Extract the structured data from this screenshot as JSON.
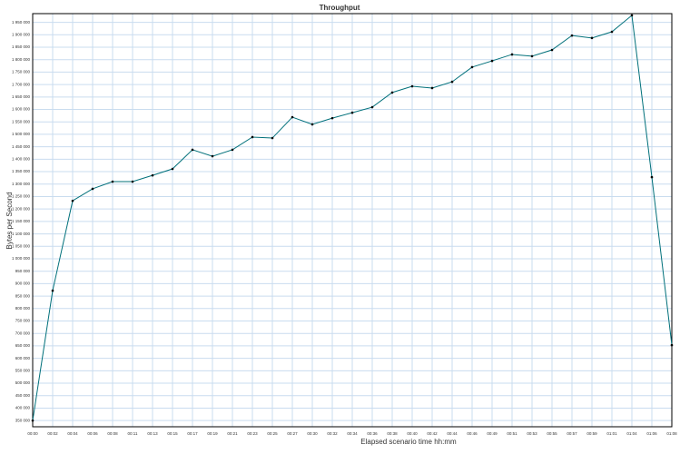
{
  "chart_data": {
    "type": "line",
    "title": "Throughput",
    "x_label": "Elapsed scenario time hh:mm",
    "y_label": "Bytes per Second",
    "categories": [
      "00:00",
      "00:02",
      "00:04",
      "00:06",
      "00:08",
      "00:11",
      "00:13",
      "00:15",
      "00:17",
      "00:19",
      "00:21",
      "00:23",
      "00:25",
      "00:27",
      "00:30",
      "00:32",
      "00:34",
      "00:36",
      "00:38",
      "00:40",
      "00:42",
      "00:44",
      "00:46",
      "00:49",
      "00:51",
      "00:53",
      "00:55",
      "00:57",
      "00:59",
      "01:01",
      "01:04",
      "01:06",
      "01:08"
    ],
    "series": [
      {
        "name": "Throughput",
        "color": "#00707a",
        "values": [
          350000,
          872000,
          1233000,
          1281000,
          1310000,
          1310000,
          1335000,
          1361000,
          1438000,
          1412000,
          1438000,
          1489000,
          1485000,
          1569000,
          1540000,
          1565000,
          1587000,
          1609000,
          1668000,
          1693000,
          1686000,
          1711000,
          1770000,
          1795000,
          1821000,
          1814000,
          1839000,
          1897000,
          1887000,
          1912000,
          1978000,
          1328000,
          653000
        ]
      }
    ],
    "ylim": [
      325000,
      1985000
    ],
    "yticks": [
      {
        "value": 350000,
        "label": "350 000"
      },
      {
        "value": 400000,
        "label": "400 000"
      },
      {
        "value": 450000,
        "label": "450 000"
      },
      {
        "value": 500000,
        "label": "500 000"
      },
      {
        "value": 550000,
        "label": "550 000"
      },
      {
        "value": 600000,
        "label": "600 000"
      },
      {
        "value": 650000,
        "label": "650 000"
      },
      {
        "value": 700000,
        "label": "700 000"
      },
      {
        "value": 750000,
        "label": "750 000"
      },
      {
        "value": 800000,
        "label": "800 000"
      },
      {
        "value": 850000,
        "label": "850 000"
      },
      {
        "value": 900000,
        "label": "900 000"
      },
      {
        "value": 950000,
        "label": "950 000"
      },
      {
        "value": 1000000,
        "label": "1 000 000"
      },
      {
        "value": 1050000,
        "label": "1 050 000"
      },
      {
        "value": 1100000,
        "label": "1 100 000"
      },
      {
        "value": 1150000,
        "label": "1 150 000"
      },
      {
        "value": 1200000,
        "label": "1 200 000"
      },
      {
        "value": 1250000,
        "label": "1 250 000"
      },
      {
        "value": 1300000,
        "label": "1 300 000"
      },
      {
        "value": 1350000,
        "label": "1 350 000"
      },
      {
        "value": 1400000,
        "label": "1 400 000"
      },
      {
        "value": 1450000,
        "label": "1 450 000"
      },
      {
        "value": 1500000,
        "label": "1 500 000"
      },
      {
        "value": 1550000,
        "label": "1 550 000"
      },
      {
        "value": 1600000,
        "label": "1 600 000"
      },
      {
        "value": 1650000,
        "label": "1 650 000"
      },
      {
        "value": 1700000,
        "label": "1 700 000"
      },
      {
        "value": 1750000,
        "label": "1 750 000"
      },
      {
        "value": 1800000,
        "label": "1 800 000"
      },
      {
        "value": 1850000,
        "label": "1 850 000"
      },
      {
        "value": 1900000,
        "label": "1 900 000"
      },
      {
        "value": 1950000,
        "label": "1 950 000"
      }
    ],
    "grid": true
  }
}
